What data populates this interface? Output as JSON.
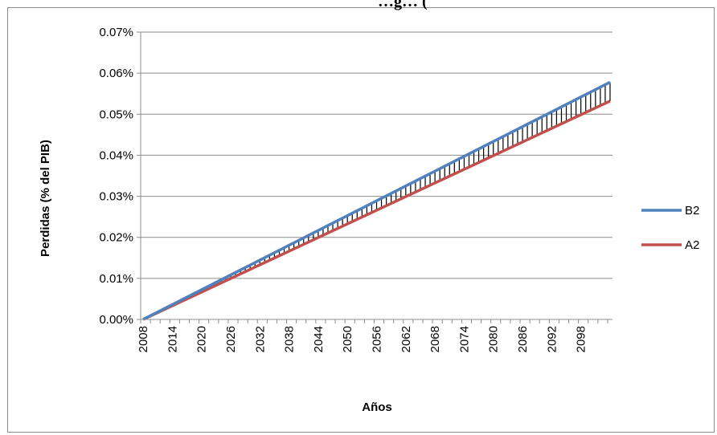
{
  "chart_data": {
    "type": "line",
    "title": "…g… (",
    "xlabel": "Años",
    "ylabel": "Perdidas (% del PIB)",
    "x_start": 2008,
    "x_end": 2104,
    "xticks": [
      "2008",
      "2014",
      "2020",
      "2026",
      "2032",
      "2038",
      "2044",
      "2050",
      "2056",
      "2062",
      "2068",
      "2074",
      "2080",
      "2086",
      "2092",
      "2098"
    ],
    "yticks": [
      "0.00%",
      "0.01%",
      "0.02%",
      "0.03%",
      "0.04%",
      "0.05%",
      "0.06%",
      "0.07%"
    ],
    "ylim": [
      0,
      0.07
    ],
    "grid": true,
    "legend_position": "right",
    "hi_lo_lines": true,
    "series": [
      {
        "name": "B2",
        "color": "#4f81bd",
        "start": 0.0,
        "end": 0.0578
      },
      {
        "name": "A2",
        "color": "#c0504d",
        "start": 0.0,
        "end": 0.0532
      }
    ]
  }
}
